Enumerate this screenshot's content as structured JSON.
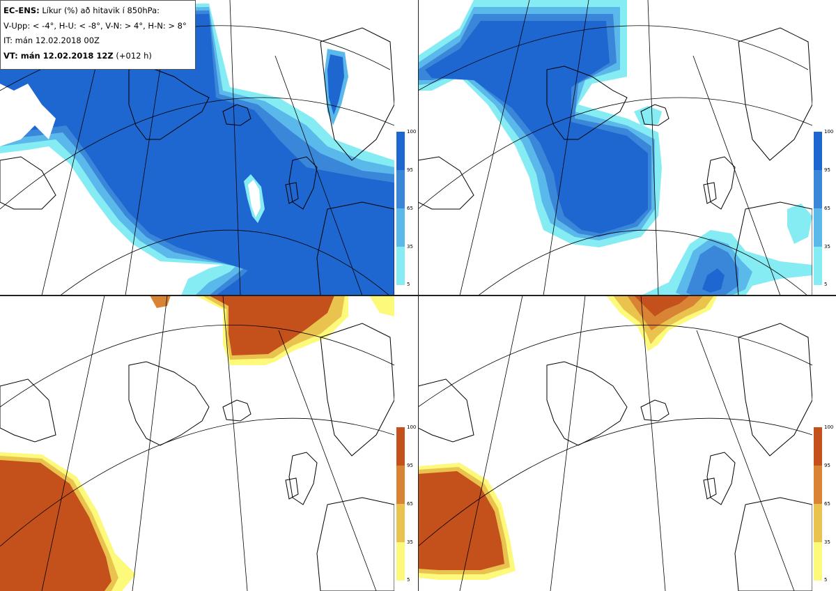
{
  "header": {
    "model": "EC-ENS:",
    "title": "Líkur (%) að hitavik í 850hPa:",
    "thresholds": "V-Upp: < -4°, H-U: < -8°, V-N: > 4°, H-N: > 8°",
    "init_time": "IT: mán 12.02.2018 00Z",
    "valid_label": "VT: mán 12.02.2018 12Z",
    "lead": "(+012 h)"
  },
  "colorbars": {
    "cold": {
      "ticks": [
        "100",
        "95",
        "65",
        "35",
        "5"
      ],
      "colors": [
        "#1e66d0",
        "#3a86d8",
        "#5bb8ea",
        "#86ecf4"
      ]
    },
    "warm": {
      "ticks": [
        "100",
        "95",
        "65",
        "35",
        "5"
      ],
      "colors": [
        "#c4501c",
        "#d88434",
        "#eac24e",
        "#fdf97a"
      ]
    }
  },
  "panels": [
    {
      "id": "V-Upp",
      "kind": "cold"
    },
    {
      "id": "H-U",
      "kind": "cold"
    },
    {
      "id": "V-N",
      "kind": "warm"
    },
    {
      "id": "H-N",
      "kind": "warm"
    }
  ]
}
